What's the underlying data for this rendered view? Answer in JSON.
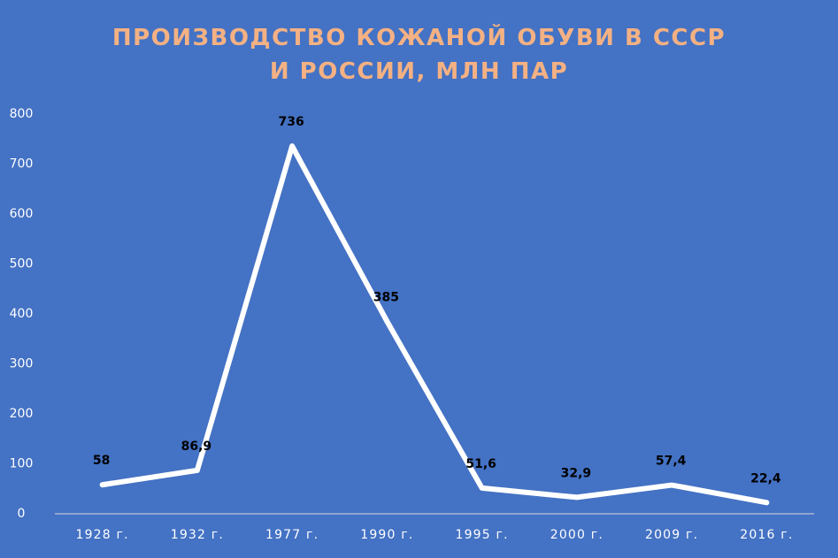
{
  "chart_data": {
    "type": "line",
    "title": "ПРОИЗВОДСТВО КОЖАНОЙ ОБУВИ В СССР И РОССИИ, МЛН ПАР",
    "categories": [
      "1928 г.",
      "1932 г.",
      "1977 г.",
      "1990 г.",
      "1995 г.",
      "2000 г.",
      "2009 г.",
      "2016 г."
    ],
    "values": [
      58,
      86.9,
      736,
      385,
      51.6,
      32.9,
      57.4,
      22.4
    ],
    "value_labels": [
      "58",
      "86,9",
      "736",
      "385",
      "51,6",
      "32,9",
      "57,4",
      "22,4"
    ],
    "color": "#ffffff",
    "drop_lines": true,
    "ylim": [
      0,
      800
    ],
    "yticks": [
      0,
      100,
      200,
      300,
      400,
      500,
      600,
      700,
      800
    ],
    "grid": false
  }
}
